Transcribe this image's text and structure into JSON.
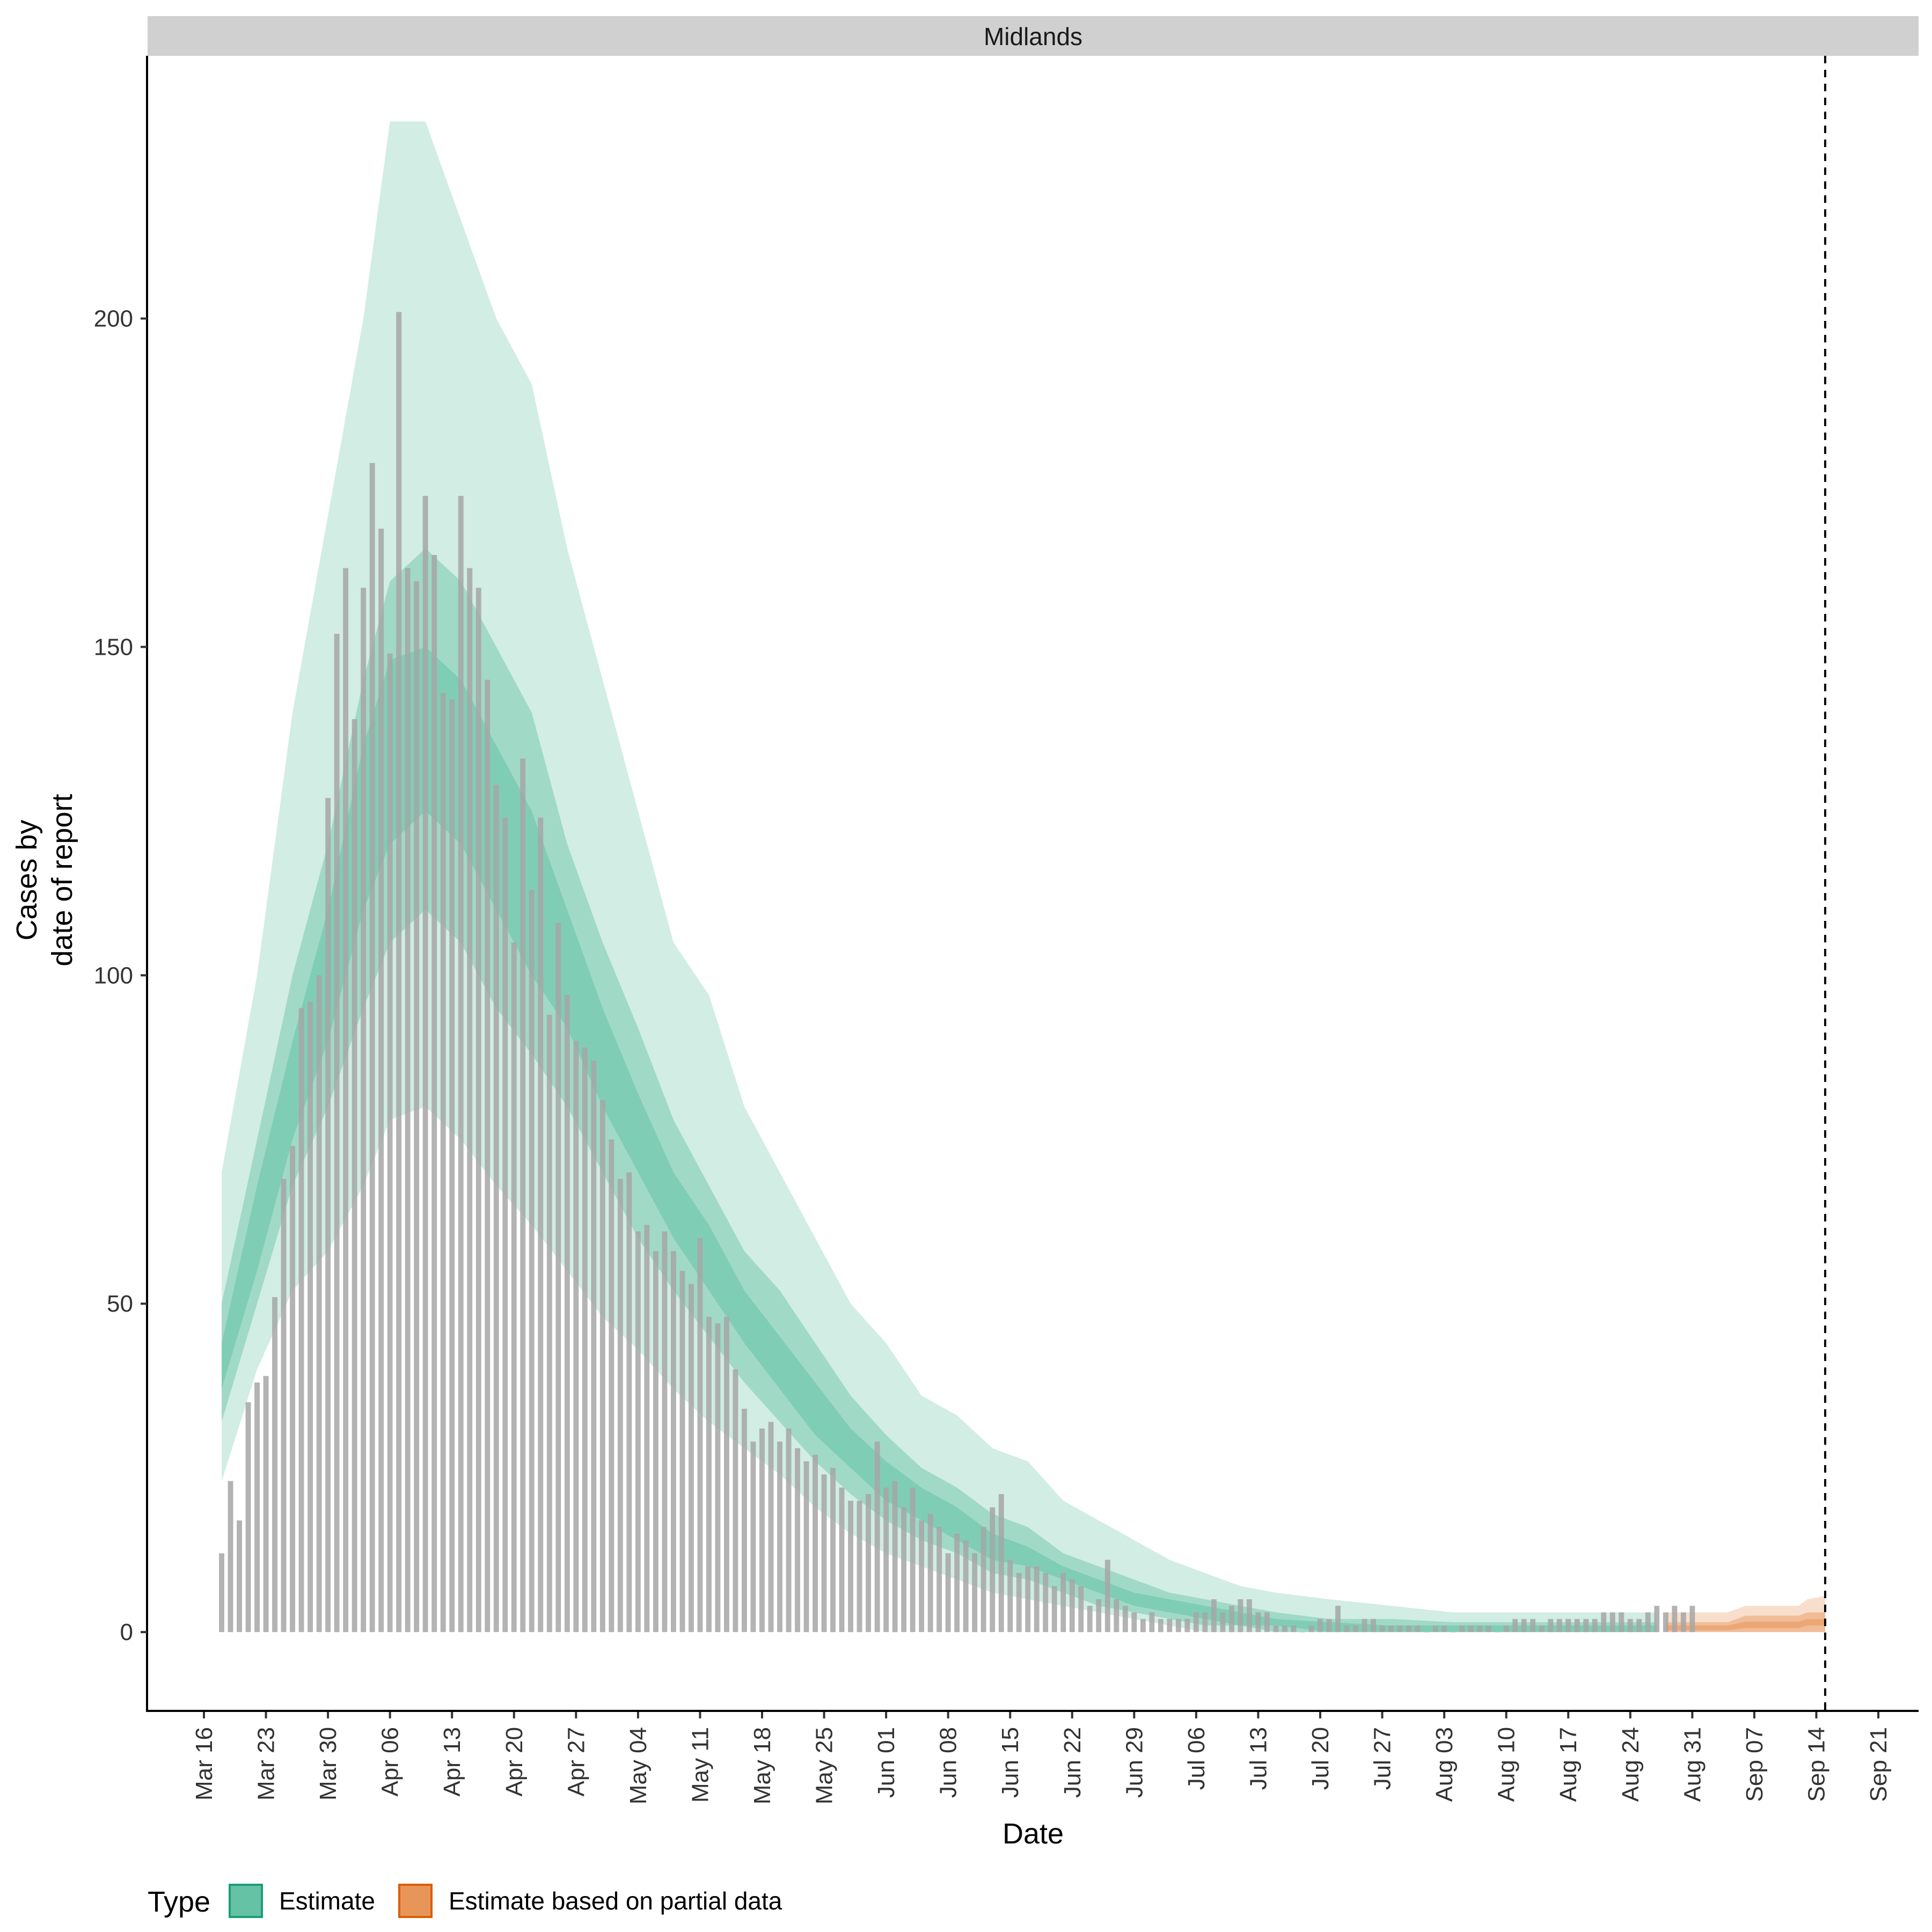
{
  "chart_data": {
    "type": "bar",
    "facet_label": "Midlands",
    "xlabel": "Date",
    "ylabel_lines": [
      "Cases by",
      "date of report"
    ],
    "x_ticks": [
      "Mar 16",
      "Mar 23",
      "Mar 30",
      "Apr 06",
      "Apr 13",
      "Apr 20",
      "Apr 27",
      "May 04",
      "May 11",
      "May 18",
      "May 25",
      "Jun 01",
      "Jun 08",
      "Jun 15",
      "Jun 22",
      "Jun 29",
      "Jul 06",
      "Jul 13",
      "Jul 20",
      "Jul 27",
      "Aug 03",
      "Aug 10",
      "Aug 17",
      "Aug 24",
      "Aug 31",
      "Sep 07",
      "Sep 14",
      "Sep 21"
    ],
    "y_ticks": [
      0,
      50,
      100,
      150,
      200
    ],
    "ylim": [
      -12,
      240
    ],
    "grid": false,
    "vline_date": "2020-09-15",
    "legend": {
      "title": "Type",
      "position": "bottom-left",
      "items": [
        {
          "label": "Estimate",
          "fill": "#66c2a5",
          "border": "#1b9e77"
        },
        {
          "label": "Estimate based on partial data",
          "fill": "#e8955a",
          "border": "#d95f02"
        }
      ]
    },
    "colors": {
      "bars": "#a6a6a6",
      "estimate": "#66c2a5",
      "partial": "#e8955a",
      "strip_bg": "#d0d0d0"
    },
    "reported_cases": {
      "start_date": "2020-03-18",
      "values": [
        12,
        23,
        17,
        35,
        38,
        39,
        51,
        69,
        74,
        95,
        96,
        100,
        127,
        152,
        162,
        139,
        159,
        178,
        168,
        149,
        201,
        162,
        160,
        173,
        164,
        143,
        142,
        173,
        162,
        159,
        145,
        129,
        124,
        105,
        133,
        113,
        124,
        94,
        108,
        97,
        90,
        89,
        87,
        81,
        75,
        69,
        70,
        61,
        62,
        58,
        61,
        58,
        55,
        53,
        60,
        48,
        47,
        48,
        40,
        34,
        29,
        31,
        32,
        29,
        31,
        28,
        26,
        27,
        24,
        25,
        22,
        20,
        20,
        21,
        29,
        22,
        23,
        19,
        22,
        17,
        18,
        16,
        12,
        15,
        14,
        12,
        16,
        19,
        21,
        11,
        9,
        10,
        10,
        9,
        7,
        9,
        8,
        7,
        4,
        5,
        11,
        5,
        4,
        3,
        2,
        3,
        2,
        2,
        2,
        2,
        3,
        3,
        5,
        3,
        4,
        5,
        5,
        3,
        3,
        1,
        1,
        1,
        0,
        1,
        2,
        2,
        4,
        1,
        1,
        2,
        2,
        1,
        1,
        1,
        1,
        1,
        0,
        1,
        1,
        0,
        1,
        1,
        1,
        1,
        0,
        1,
        2,
        2,
        2,
        1,
        2,
        2,
        2,
        2,
        2,
        2,
        3,
        3,
        3,
        2,
        2,
        3,
        4,
        3,
        4,
        3,
        4
      ]
    },
    "estimate_bands": {
      "start_date": "2020-03-18",
      "end_date": "2020-08-27",
      "anchors": [
        {
          "date": "2020-03-18",
          "q90": [
            23,
            70
          ],
          "q50": [
            32,
            50
          ],
          "q20": [
            37,
            44
          ]
        },
        {
          "date": "2020-03-22",
          "q90": [
            40,
            100
          ],
          "q50": [
            50,
            75
          ],
          "q20": [
            55,
            68
          ]
        },
        {
          "date": "2020-03-26",
          "q90": [
            52,
            140
          ],
          "q50": [
            68,
            100
          ],
          "q20": [
            75,
            90
          ]
        },
        {
          "date": "2020-03-30",
          "q90": [
            58,
            170
          ],
          "q50": [
            80,
            120
          ],
          "q20": [
            90,
            110
          ]
        },
        {
          "date": "2020-04-03",
          "q90": [
            68,
            200
          ],
          "q50": [
            95,
            145
          ],
          "q20": [
            110,
            135
          ]
        },
        {
          "date": "2020-04-06",
          "q90": [
            78,
            230
          ],
          "q50": [
            105,
            160
          ],
          "q20": [
            120,
            148
          ]
        },
        {
          "date": "2020-04-10",
          "q90": [
            80,
            230
          ],
          "q50": [
            110,
            165
          ],
          "q20": [
            125,
            150
          ]
        },
        {
          "date": "2020-04-14",
          "q90": [
            75,
            215
          ],
          "q50": [
            105,
            160
          ],
          "q20": [
            120,
            145
          ]
        },
        {
          "date": "2020-04-18",
          "q90": [
            68,
            200
          ],
          "q50": [
            95,
            150
          ],
          "q20": [
            110,
            135
          ]
        },
        {
          "date": "2020-04-22",
          "q90": [
            62,
            190
          ],
          "q50": [
            88,
            140
          ],
          "q20": [
            100,
            125
          ]
        },
        {
          "date": "2020-04-26",
          "q90": [
            55,
            165
          ],
          "q50": [
            80,
            120
          ],
          "q20": [
            92,
            110
          ]
        },
        {
          "date": "2020-04-30",
          "q90": [
            48,
            145
          ],
          "q50": [
            70,
            105
          ],
          "q20": [
            80,
            95
          ]
        },
        {
          "date": "2020-05-04",
          "q90": [
            43,
            125
          ],
          "q50": [
            60,
            92
          ],
          "q20": [
            70,
            82
          ]
        },
        {
          "date": "2020-05-08",
          "q90": [
            37,
            105
          ],
          "q50": [
            52,
            78
          ],
          "q20": [
            60,
            70
          ]
        },
        {
          "date": "2020-05-12",
          "q90": [
            32,
            97
          ],
          "q50": [
            45,
            68
          ],
          "q20": [
            52,
            62
          ]
        },
        {
          "date": "2020-05-16",
          "q90": [
            28,
            80
          ],
          "q50": [
            38,
            58
          ],
          "q20": [
            44,
            52
          ]
        },
        {
          "date": "2020-05-20",
          "q90": [
            24,
            70
          ],
          "q50": [
            32,
            52
          ],
          "q20": [
            37,
            45
          ]
        },
        {
          "date": "2020-05-24",
          "q90": [
            19,
            60
          ],
          "q50": [
            26,
            44
          ],
          "q20": [
            30,
            38
          ]
        },
        {
          "date": "2020-05-28",
          "q90": [
            15,
            50
          ],
          "q50": [
            21,
            36
          ],
          "q20": [
            25,
            31
          ]
        },
        {
          "date": "2020-06-01",
          "q90": [
            12,
            44
          ],
          "q50": [
            17,
            30
          ],
          "q20": [
            20,
            26
          ]
        },
        {
          "date": "2020-06-05",
          "q90": [
            10,
            36
          ],
          "q50": [
            14,
            25
          ],
          "q20": [
            17,
            22
          ]
        },
        {
          "date": "2020-06-09",
          "q90": [
            8,
            33
          ],
          "q50": [
            12,
            22
          ],
          "q20": [
            14,
            19
          ]
        },
        {
          "date": "2020-06-13",
          "q90": [
            6,
            28
          ],
          "q50": [
            9,
            18
          ],
          "q20": [
            11,
            15
          ]
        },
        {
          "date": "2020-06-17",
          "q90": [
            5,
            26
          ],
          "q50": [
            8,
            16
          ],
          "q20": [
            10,
            13
          ]
        },
        {
          "date": "2020-06-21",
          "q90": [
            4,
            20
          ],
          "q50": [
            6,
            12
          ],
          "q20": [
            8,
            10
          ]
        },
        {
          "date": "2020-06-25",
          "q90": [
            3,
            17
          ],
          "q50": [
            4,
            10
          ],
          "q20": [
            6,
            8
          ]
        },
        {
          "date": "2020-06-29",
          "q90": [
            2,
            14
          ],
          "q50": [
            3,
            8
          ],
          "q20": [
            4,
            6
          ]
        },
        {
          "date": "2020-07-03",
          "q90": [
            1,
            11
          ],
          "q50": [
            2,
            6
          ],
          "q20": [
            3,
            5
          ]
        },
        {
          "date": "2020-07-07",
          "q90": [
            0,
            9
          ],
          "q50": [
            1,
            5
          ],
          "q20": [
            2,
            4
          ]
        },
        {
          "date": "2020-07-11",
          "q90": [
            0,
            7
          ],
          "q50": [
            1,
            4
          ],
          "q20": [
            1,
            3
          ]
        },
        {
          "date": "2020-07-15",
          "q90": [
            0,
            6
          ],
          "q50": [
            0,
            3
          ],
          "q20": [
            1,
            2
          ]
        },
        {
          "date": "2020-07-21",
          "q90": [
            0,
            5
          ],
          "q50": [
            0,
            2
          ],
          "q20": [
            0,
            1.5
          ]
        },
        {
          "date": "2020-07-28",
          "q90": [
            0,
            4
          ],
          "q50": [
            0,
            2
          ],
          "q20": [
            0,
            1
          ]
        },
        {
          "date": "2020-08-04",
          "q90": [
            0,
            3
          ],
          "q50": [
            0,
            1.5
          ],
          "q20": [
            0,
            1
          ]
        },
        {
          "date": "2020-08-27",
          "q90": [
            0,
            3
          ],
          "q50": [
            0,
            1.5
          ],
          "q20": [
            0,
            1
          ]
        }
      ]
    },
    "partial_bands": {
      "start_date": "2020-08-28",
      "end_date": "2020-09-15",
      "anchors": [
        {
          "date": "2020-08-28",
          "q90": [
            0,
            3
          ],
          "q50": [
            0,
            1.5
          ],
          "q20": [
            0.3,
            1
          ]
        },
        {
          "date": "2020-09-04",
          "q90": [
            0,
            3
          ],
          "q50": [
            0,
            1.5
          ],
          "q20": [
            0.3,
            1
          ]
        },
        {
          "date": "2020-09-06",
          "q90": [
            0,
            4
          ],
          "q50": [
            0,
            2.5
          ],
          "q20": [
            0.6,
            1.6
          ]
        },
        {
          "date": "2020-09-12",
          "q90": [
            0,
            4
          ],
          "q50": [
            0,
            2.5
          ],
          "q20": [
            0.6,
            1.6
          ]
        },
        {
          "date": "2020-09-13",
          "q90": [
            0,
            5
          ],
          "q50": [
            0,
            3
          ],
          "q20": [
            1,
            2
          ]
        },
        {
          "date": "2020-09-15",
          "q90": [
            0,
            5.5
          ],
          "q50": [
            0,
            3
          ],
          "q20": [
            1,
            2
          ]
        }
      ]
    }
  }
}
